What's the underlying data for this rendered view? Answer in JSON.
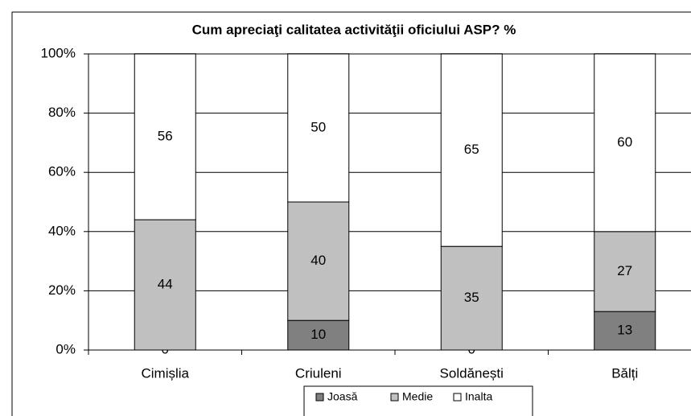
{
  "chart_data": {
    "type": "stacked_bar",
    "title": "Cum apreciaţi calitatea activităţii oficiului ASP? %",
    "categories": [
      "Cimișlia",
      "Criuleni",
      "Soldănești",
      "Bălți"
    ],
    "series": [
      {
        "name": "Joasă",
        "color": "#808080",
        "values": [
          0,
          10,
          0,
          13
        ]
      },
      {
        "name": "Medie",
        "color": "#c0c0c0",
        "values": [
          44,
          40,
          35,
          27
        ]
      },
      {
        "name": "Inalta",
        "color": "#ffffff",
        "values": [
          56,
          50,
          65,
          60
        ]
      }
    ],
    "ylim": [
      0,
      100
    ],
    "yticks": [
      {
        "value": 0,
        "label": "0%"
      },
      {
        "value": 20,
        "label": "20%"
      },
      {
        "value": 40,
        "label": "40%"
      },
      {
        "value": 60,
        "label": "60%"
      },
      {
        "value": 80,
        "label": "80%"
      },
      {
        "value": 100,
        "label": "100%"
      }
    ],
    "grid": true,
    "legend": "bottom"
  }
}
